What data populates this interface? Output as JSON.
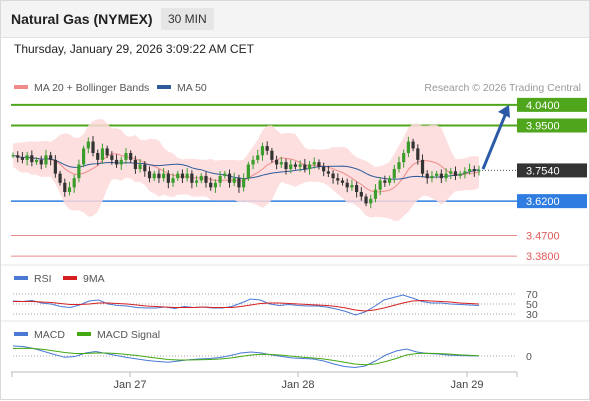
{
  "header": {
    "title": "Natural Gas (NYMEX)",
    "timeframe": "30 MIN",
    "datetime": "Thursday, January 29, 2026 3:09:22 AM CET"
  },
  "colors": {
    "resistance": "#4fa51c",
    "support": "#2f7de1",
    "target": "#e05a5a",
    "current": "#333333",
    "arrow": "#2b5aa6",
    "bollinger": "#fdd9d9",
    "ma20": "#f18b8b",
    "ma50": "#2d5b9a",
    "rsi": "#4a79d4",
    "rsi_ma": "#d62020",
    "macd": "#4a79d4",
    "macd_signal": "#44a814"
  },
  "chart_data": [
    {
      "type": "candlestick",
      "legend": [
        {
          "name": "MA 20 + Bollinger Bands",
          "color": "#f18b8b"
        },
        {
          "name": "MA 50",
          "color": "#2d5b9a"
        }
      ],
      "credit": "Research © 2026 Trading Central",
      "ylim": [
        3.35,
        4.07
      ],
      "x_ticks": [
        "Jan 27",
        "Jan 28",
        "Jan 29"
      ],
      "levels": [
        {
          "value": 4.04,
          "label": "4.0400",
          "kind": "resistance"
        },
        {
          "value": 3.95,
          "label": "3.9500",
          "kind": "resistance"
        },
        {
          "value": 3.754,
          "label": "3.7540",
          "kind": "current"
        },
        {
          "value": 3.62,
          "label": "3.6200",
          "kind": "support"
        },
        {
          "value": 3.47,
          "label": "3.4700",
          "kind": "target"
        },
        {
          "value": 3.38,
          "label": "3.3800",
          "kind": "target"
        }
      ],
      "close_path": [
        3.82,
        3.81,
        3.8,
        3.82,
        3.79,
        3.8,
        3.78,
        3.82,
        3.8,
        3.74,
        3.7,
        3.66,
        3.68,
        3.72,
        3.78,
        3.85,
        3.88,
        3.83,
        3.8,
        3.85,
        3.82,
        3.8,
        3.78,
        3.8,
        3.83,
        3.8,
        3.76,
        3.78,
        3.75,
        3.72,
        3.74,
        3.72,
        3.74,
        3.7,
        3.72,
        3.74,
        3.72,
        3.74,
        3.7,
        3.71,
        3.73,
        3.7,
        3.68,
        3.7,
        3.73,
        3.74,
        3.7,
        3.72,
        3.68,
        3.72,
        3.78,
        3.8,
        3.82,
        3.86,
        3.84,
        3.8,
        3.78,
        3.79,
        3.76,
        3.78,
        3.77,
        3.78,
        3.76,
        3.78,
        3.79,
        3.77,
        3.75,
        3.74,
        3.72,
        3.71,
        3.7,
        3.68,
        3.69,
        3.66,
        3.64,
        3.61,
        3.63,
        3.67,
        3.71,
        3.7,
        3.72,
        3.76,
        3.79,
        3.83,
        3.88,
        3.85,
        3.8,
        3.74,
        3.72,
        3.73,
        3.74,
        3.72,
        3.74,
        3.75,
        3.73,
        3.74,
        3.75,
        3.76,
        3.75,
        3.754
      ],
      "arrow": {
        "from": 3.76,
        "to": 4.04
      }
    },
    {
      "type": "line",
      "legend": [
        {
          "name": "RSI",
          "color": "#4a79d4"
        },
        {
          "name": "9MA",
          "color": "#d62020"
        }
      ],
      "y_ticks": [
        {
          "value": 70,
          "label": "70"
        },
        {
          "value": 50,
          "label": "50"
        },
        {
          "value": 30,
          "label": "30"
        }
      ],
      "ylim": [
        20,
        80
      ],
      "series": [
        {
          "name": "RSI",
          "values": [
            56,
            55,
            57,
            52,
            50,
            45,
            43,
            48,
            56,
            58,
            50,
            47,
            46,
            43,
            42,
            42,
            44,
            41,
            45,
            43,
            44,
            42,
            42,
            45,
            52,
            60,
            58,
            50,
            47,
            49,
            47,
            46,
            46,
            44,
            40,
            35,
            28,
            34,
            45,
            58,
            63,
            68,
            62,
            55,
            52,
            52,
            50,
            49,
            48,
            47
          ]
        },
        {
          "name": "9MA",
          "values": [
            55,
            55,
            55,
            54,
            53,
            51,
            49,
            49,
            50,
            52,
            52,
            51,
            50,
            48,
            46,
            45,
            44,
            43,
            43,
            43,
            44,
            43,
            43,
            43,
            45,
            48,
            51,
            52,
            52,
            51,
            50,
            49,
            48,
            47,
            45,
            42,
            38,
            36,
            38,
            42,
            47,
            52,
            56,
            57,
            56,
            55,
            54,
            52,
            51,
            50
          ]
        }
      ]
    },
    {
      "type": "line",
      "legend": [
        {
          "name": "MACD",
          "color": "#4a79d4"
        },
        {
          "name": "MACD Signal",
          "color": "#44a814"
        }
      ],
      "y_ticks": [
        {
          "value": 0,
          "label": "0"
        }
      ],
      "ylim": [
        -0.06,
        0.06
      ],
      "series": [
        {
          "name": "MACD",
          "values": [
            0.04,
            0.038,
            0.03,
            0.018,
            0.006,
            -0.005,
            -0.002,
            0.012,
            0.018,
            0.01,
            0.002,
            -0.006,
            -0.012,
            -0.018,
            -0.022,
            -0.025,
            -0.02,
            -0.015,
            -0.012,
            -0.01,
            -0.006,
            0.002,
            0.012,
            0.016,
            0.012,
            0.004,
            -0.002,
            -0.008,
            -0.01,
            -0.012,
            -0.02,
            -0.032,
            -0.042,
            -0.046,
            -0.04,
            -0.02,
            0.004,
            0.02,
            0.028,
            0.016,
            0.01,
            0.008,
            0.004,
            0.002,
            0.001,
            0.0
          ]
        },
        {
          "name": "MACD Signal",
          "values": [
            0.03,
            0.031,
            0.03,
            0.026,
            0.02,
            0.014,
            0.01,
            0.01,
            0.012,
            0.012,
            0.01,
            0.006,
            0.002,
            -0.004,
            -0.009,
            -0.014,
            -0.016,
            -0.016,
            -0.015,
            -0.014,
            -0.012,
            -0.008,
            -0.002,
            0.004,
            0.007,
            0.006,
            0.003,
            -0.001,
            -0.005,
            -0.008,
            -0.012,
            -0.018,
            -0.025,
            -0.032,
            -0.035,
            -0.032,
            -0.022,
            -0.01,
            0.004,
            0.01,
            0.011,
            0.01,
            0.008,
            0.005,
            0.003,
            0.001
          ]
        }
      ]
    }
  ]
}
